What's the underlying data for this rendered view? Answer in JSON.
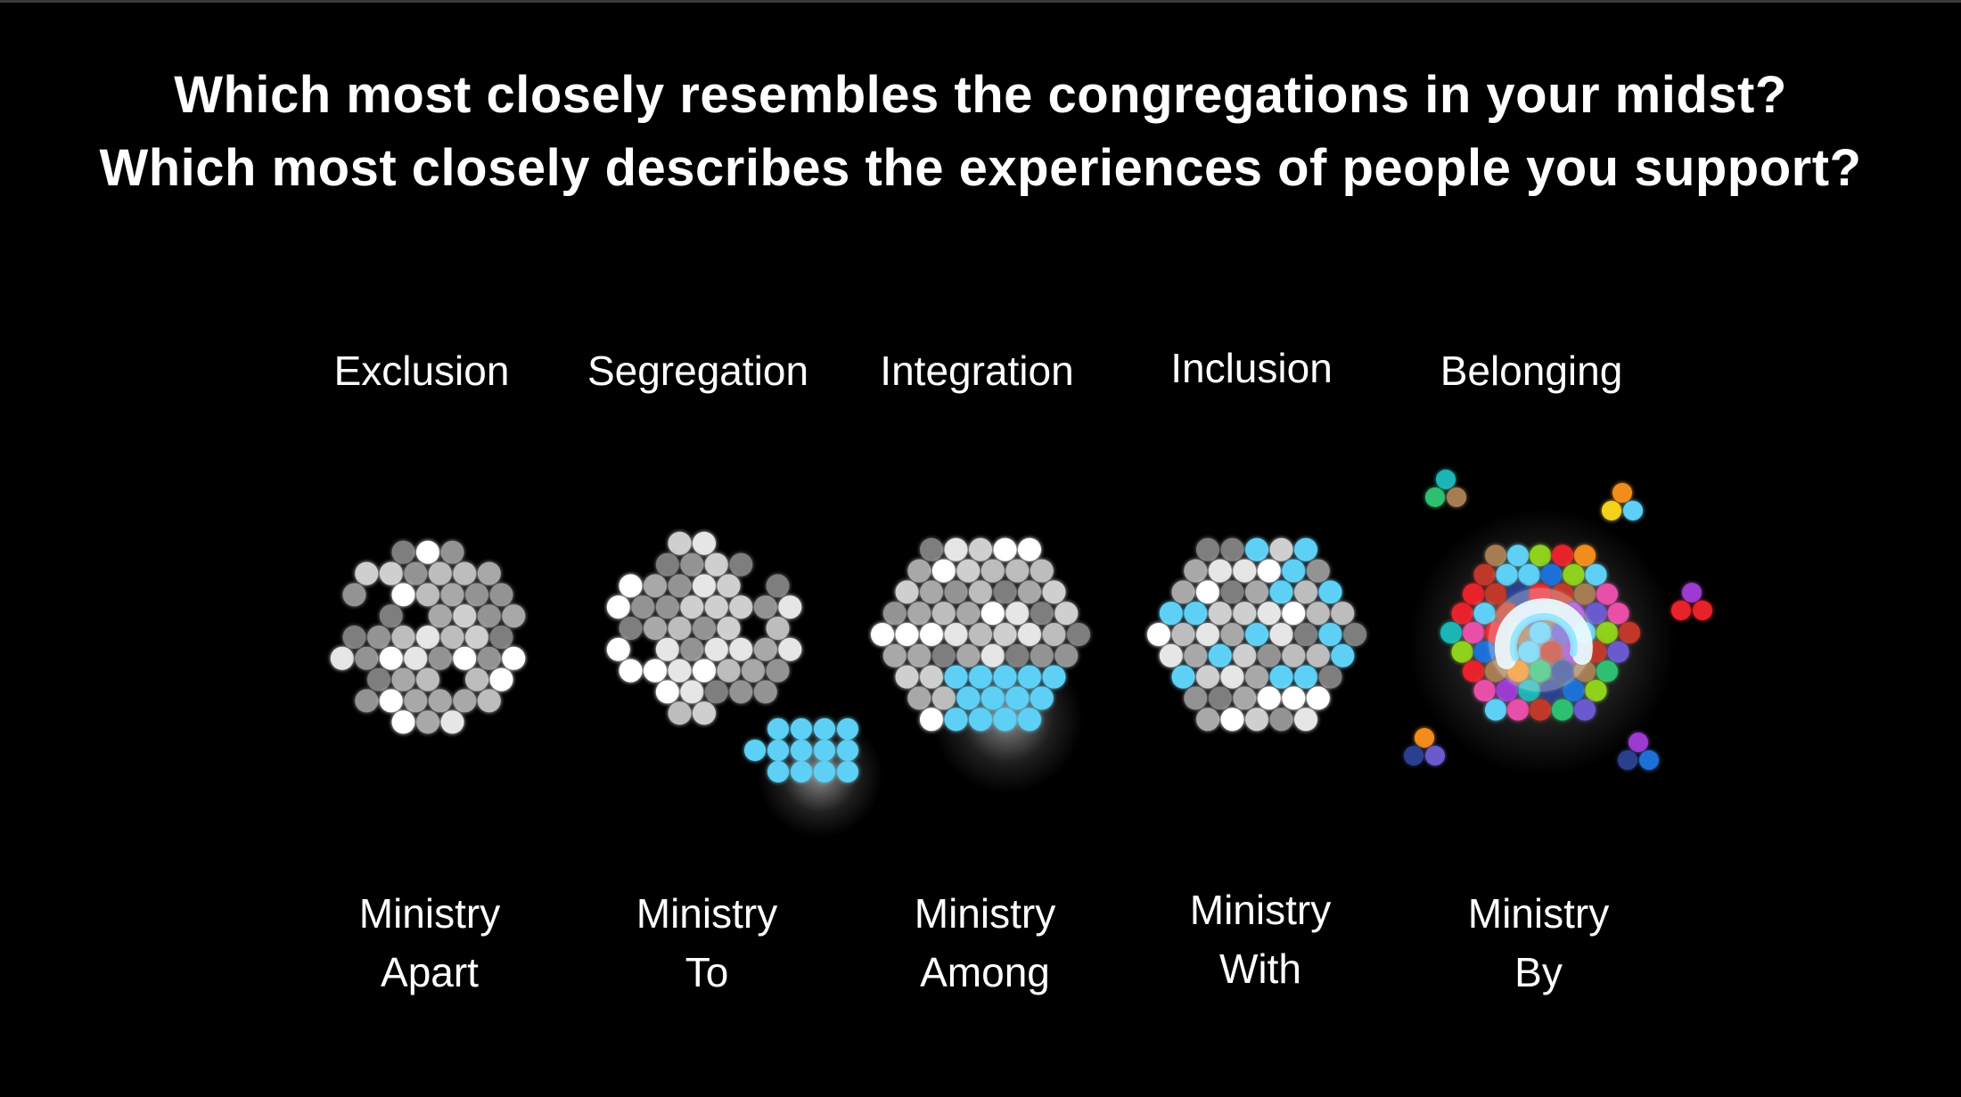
{
  "headline": {
    "line1": "Which most closely resembles the congregations in your midst?",
    "line2": "Which most closely describes the experiences of people you support?"
  },
  "stages": [
    {
      "label": "Exclusion",
      "ministry": "Ministry",
      "mode": "Apart"
    },
    {
      "label": "Segregation",
      "ministry": "Ministry",
      "mode": "To"
    },
    {
      "label": "Integration",
      "ministry": "Ministry",
      "mode": "Among"
    },
    {
      "label": "Inclusion",
      "ministry": "Ministry",
      "mode": "With"
    },
    {
      "label": "Belonging",
      "ministry": "Ministry",
      "mode": "By"
    }
  ],
  "colors": {
    "background": "#000000",
    "text": "#ffffff",
    "accent_blue": "#5fd0f5",
    "grays": [
      "#ffffff",
      "#e6e6e6",
      "#cfcfcf",
      "#bdbdbd",
      "#a8a8a8",
      "#939393",
      "#7e7e7e"
    ],
    "belonging_palette": [
      "#e8242a",
      "#1f6fd6",
      "#2fbf71",
      "#f28c1c",
      "#9b3bd0",
      "#f4d21f",
      "#e84fa8",
      "#1ab5b5",
      "#8fd11e",
      "#2a3f8f",
      "#c0392b",
      "#5fd0f5",
      "#a67c52",
      "#6a5acd"
    ]
  },
  "icons": {
    "belonging_center": "circular-arrow-icon"
  }
}
